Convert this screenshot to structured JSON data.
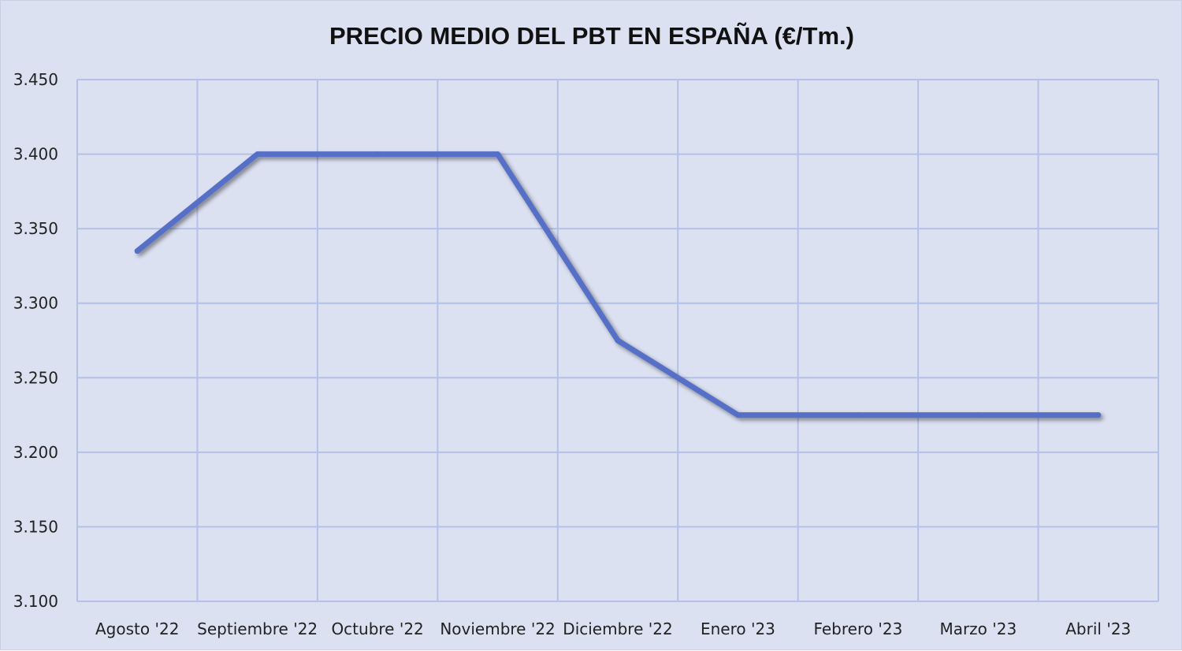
{
  "chart_data": {
    "type": "line",
    "title": "PRECIO MEDIO DEL PBT EN ESPAÑA (€/Tm.)",
    "xlabel": "",
    "ylabel": "",
    "categories": [
      "Agosto '22",
      "Septiembre '22",
      "Octubre '22",
      "Noviembre '22",
      "Diciembre '22",
      "Enero '23",
      "Febrero '23",
      "Marzo '23",
      "Abril '23"
    ],
    "series": [
      {
        "values": [
          3335,
          3400,
          3400,
          3400,
          3275,
          3225,
          3225,
          3225,
          3225
        ],
        "color": "#5470c6"
      }
    ],
    "ylim": [
      3100,
      3450
    ],
    "yticks": [
      3100,
      3150,
      3200,
      3250,
      3300,
      3350,
      3400,
      3450
    ],
    "ytick_labels": [
      "3.100",
      "3.150",
      "3.200",
      "3.250",
      "3.300",
      "3.350",
      "3.400",
      "3.450"
    ],
    "grid": true,
    "legend": "none",
    "colors": {
      "background": "#dce1f2",
      "grid": "#b4c0e6",
      "line": "#5470c6"
    }
  }
}
